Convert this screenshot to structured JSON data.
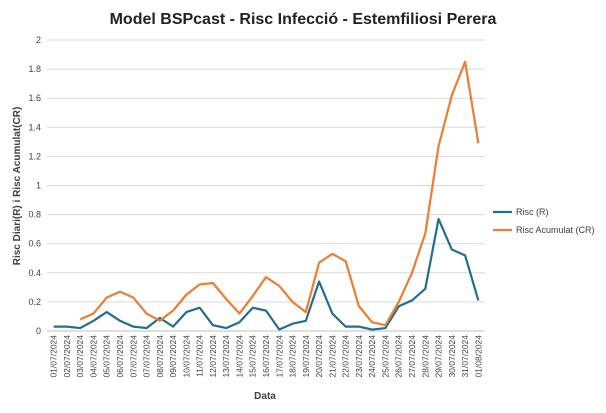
{
  "chart_data": {
    "type": "line",
    "title": "Model BSPcast - Risc Infecció - Estemfiliosi Perera",
    "x_label": "Data",
    "y_label": "Risc Diari(R) i Risc Acumulat(CR)",
    "categories": [
      "01/07/2024",
      "02/07/2024",
      "03/07/2024",
      "04/07/2024",
      "05/07/2024",
      "06/07/2024",
      "07/07/2024",
      "07/07/2024",
      "08/07/2024",
      "09/07/2024",
      "10/07/2024",
      "11/07/2024",
      "12/07/2024",
      "13/07/2024",
      "14/07/2024",
      "15/07/2024",
      "16/07/2024",
      "17/07/2024",
      "18/07/2024",
      "19/07/2024",
      "20/07/2024",
      "21/07/2024",
      "22/07/2024",
      "23/07/2024",
      "24/07/2024",
      "25/07/2024",
      "26/07/2024",
      "27/07/2024",
      "28/07/2024",
      "29/07/2024",
      "30/07/2024",
      "31/07/2024",
      "01/08/2024"
    ],
    "series": [
      {
        "name": "Risc (R)",
        "color": "#236e8e",
        "values": [
          0.03,
          0.03,
          0.02,
          0.07,
          0.13,
          0.07,
          0.03,
          0.02,
          0.09,
          0.03,
          0.13,
          0.16,
          0.04,
          0.02,
          0.06,
          0.16,
          0.14,
          0.01,
          0.05,
          0.07,
          0.34,
          0.12,
          0.03,
          0.03,
          0.01,
          0.02,
          0.17,
          0.21,
          0.29,
          0.77,
          0.56,
          0.52,
          0.21
        ]
      },
      {
        "name": "Risc Acumulat (CR)",
        "color": "#ed7d31",
        "values": [
          null,
          null,
          0.08,
          0.12,
          0.23,
          0.27,
          0.23,
          0.12,
          0.07,
          0.14,
          0.25,
          0.32,
          0.33,
          0.22,
          0.12,
          0.24,
          0.37,
          0.31,
          0.2,
          0.13,
          0.47,
          0.53,
          0.48,
          0.17,
          0.06,
          0.04,
          0.2,
          0.4,
          0.67,
          1.27,
          1.62,
          1.85,
          1.29
        ]
      }
    ],
    "ylim": [
      0,
      2
    ],
    "yticks": [
      0,
      0.2,
      0.4,
      0.6,
      0.8,
      1,
      1.2,
      1.4,
      1.6,
      1.8,
      2
    ],
    "grid": true,
    "legend": "right"
  }
}
